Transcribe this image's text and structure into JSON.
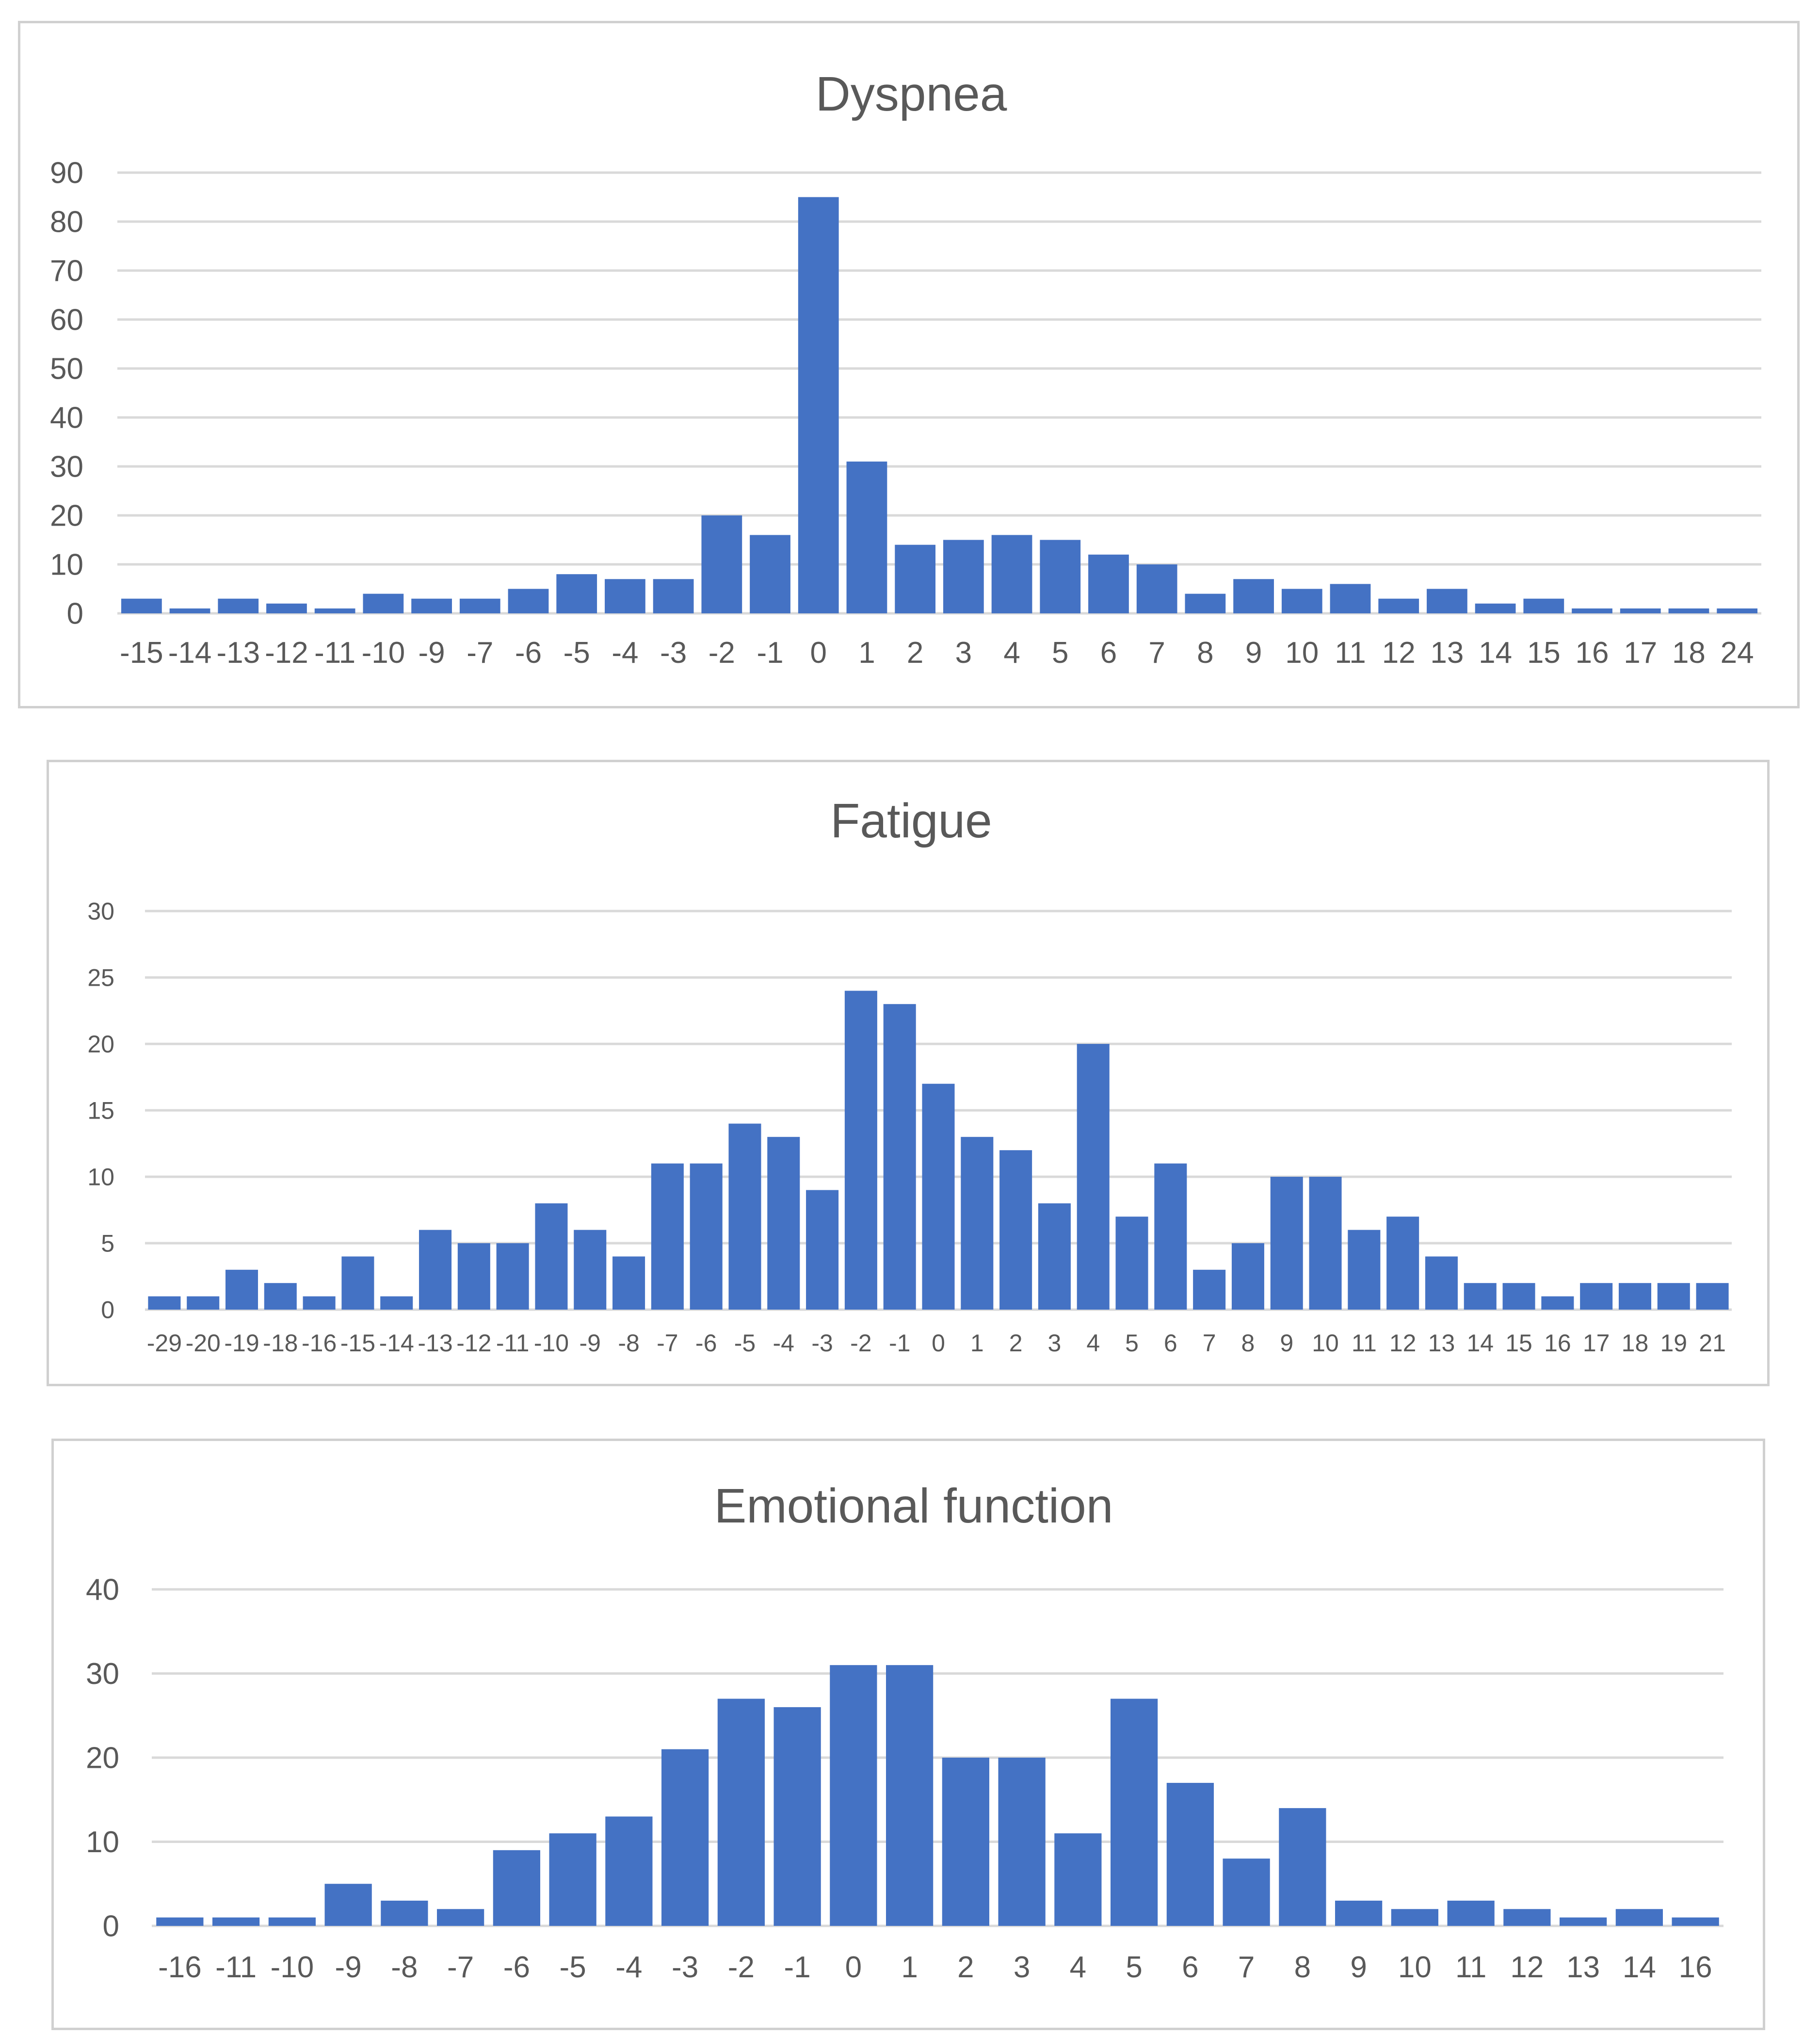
{
  "chart_data": [
    {
      "type": "bar",
      "title": "Dyspnea",
      "xlabel": "",
      "ylabel": "",
      "categories": [
        "-15",
        "-14",
        "-13",
        "-12",
        "-11",
        "-10",
        "-9",
        "-7",
        "-6",
        "-5",
        "-4",
        "-3",
        "-2",
        "-1",
        "0",
        "1",
        "2",
        "3",
        "4",
        "5",
        "6",
        "7",
        "8",
        "9",
        "10",
        "11",
        "12",
        "13",
        "14",
        "15",
        "16",
        "17",
        "18",
        "24"
      ],
      "values": [
        3,
        1,
        3,
        2,
        1,
        4,
        3,
        3,
        5,
        8,
        7,
        7,
        20,
        16,
        85,
        31,
        14,
        15,
        16,
        15,
        12,
        10,
        4,
        7,
        5,
        6,
        3,
        5,
        2,
        3,
        1,
        1,
        1,
        1
      ],
      "ylim": [
        0,
        90
      ],
      "yticks": [
        0,
        10,
        20,
        30,
        40,
        50,
        60,
        70,
        80,
        90
      ],
      "grid": true,
      "color": "#4472c4"
    },
    {
      "type": "bar",
      "title": "Fatigue",
      "xlabel": "",
      "ylabel": "",
      "categories": [
        "-29",
        "-20",
        "-19",
        "-18",
        "-16",
        "-15",
        "-14",
        "-13",
        "-12",
        "-11",
        "-10",
        "-9",
        "-8",
        "-7",
        "-6",
        "-5",
        "-4",
        "-3",
        "-2",
        "-1",
        "0",
        "1",
        "2",
        "3",
        "4",
        "5",
        "6",
        "7",
        "8",
        "9",
        "10",
        "11",
        "12",
        "13",
        "14",
        "15",
        "16",
        "17",
        "18",
        "19",
        "21"
      ],
      "values": [
        1,
        1,
        3,
        2,
        1,
        4,
        1,
        6,
        5,
        5,
        8,
        6,
        4,
        11,
        11,
        14,
        13,
        9,
        24,
        23,
        17,
        13,
        12,
        8,
        20,
        7,
        11,
        3,
        5,
        10,
        10,
        6,
        7,
        4,
        2,
        2,
        1,
        2,
        2,
        2,
        2
      ],
      "ylim": [
        0,
        30
      ],
      "yticks": [
        0,
        5,
        10,
        15,
        20,
        25,
        30
      ],
      "grid": true,
      "color": "#4472c4"
    },
    {
      "type": "bar",
      "title": "Emotional function",
      "xlabel": "",
      "ylabel": "",
      "categories": [
        "-16",
        "-11",
        "-10",
        "-9",
        "-8",
        "-7",
        "-6",
        "-5",
        "-4",
        "-3",
        "-2",
        "-1",
        "0",
        "1",
        "2",
        "3",
        "4",
        "5",
        "6",
        "7",
        "8",
        "9",
        "10",
        "11",
        "12",
        "13",
        "14",
        "16"
      ],
      "values": [
        1,
        1,
        1,
        5,
        3,
        2,
        9,
        11,
        13,
        21,
        27,
        26,
        31,
        31,
        20,
        20,
        11,
        27,
        17,
        8,
        14,
        3,
        2,
        3,
        2,
        1,
        2,
        1
      ],
      "ylim": [
        0,
        40
      ],
      "yticks": [
        0,
        10,
        20,
        30,
        40
      ],
      "grid": true,
      "color": "#4472c4"
    }
  ]
}
